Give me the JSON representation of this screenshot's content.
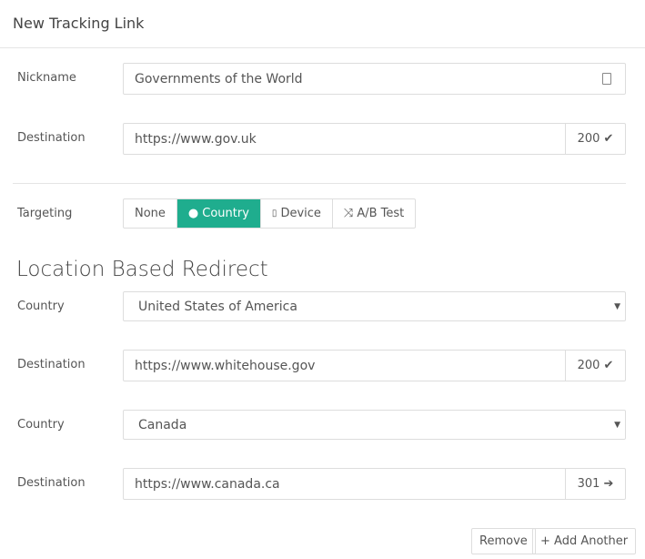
{
  "title": "New Tracking Link",
  "nickname": {
    "label": "Nickname",
    "value": "Governments of the World",
    "icon": "contact-card-icon"
  },
  "destination": {
    "label": "Destination",
    "value": "https://www.gov.uk",
    "status": "200",
    "status_icon": "check-icon"
  },
  "targeting": {
    "label": "Targeting",
    "options": [
      "None",
      "Country",
      "Device",
      "A/B Test"
    ],
    "selected": "Country",
    "accent": "#1fad8e"
  },
  "section_title": "Location Based Redirect",
  "rules": [
    {
      "country_label": "Country",
      "country": "United States of America",
      "dest_label": "Destination",
      "dest": "https://www.whitehouse.gov",
      "status": "200",
      "status_icon": "check-icon"
    },
    {
      "country_label": "Country",
      "country": "Canada",
      "dest_label": "Destination",
      "dest": "https://www.canada.ca",
      "status": "301",
      "status_icon": "arrow-right-icon"
    }
  ],
  "actions": {
    "remove": "Remove",
    "add": "+ Add Another"
  }
}
